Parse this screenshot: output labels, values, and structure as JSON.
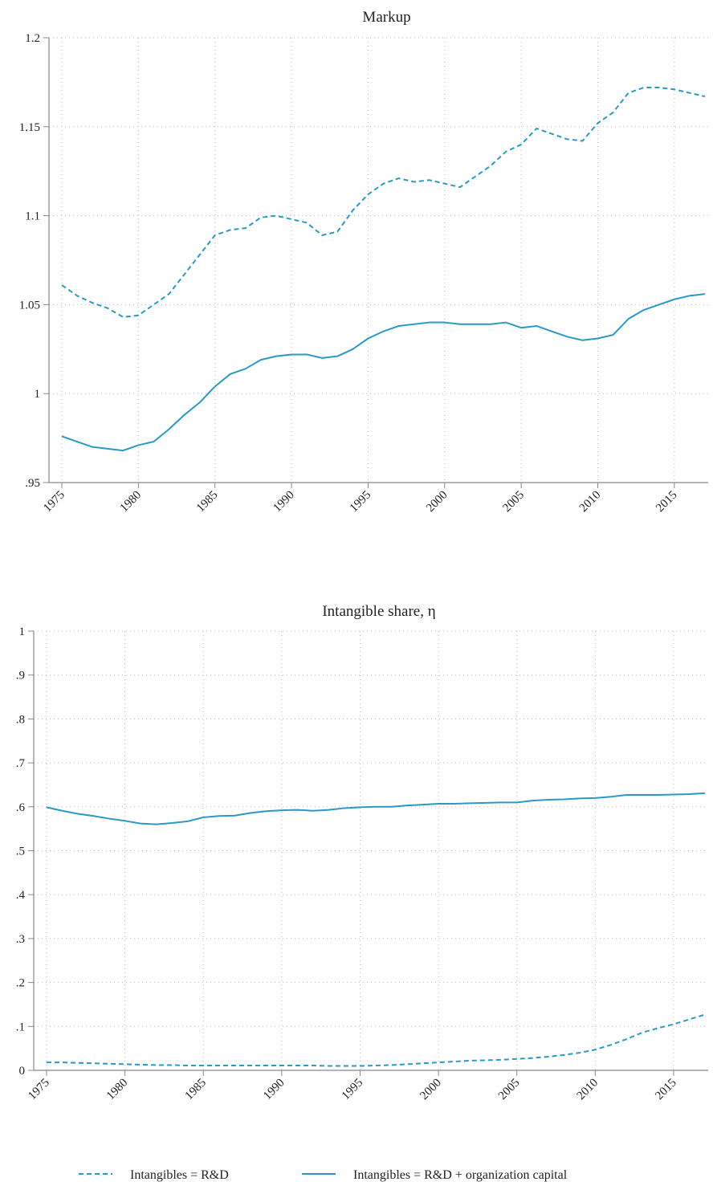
{
  "chart_data": [
    {
      "type": "line",
      "title": "Markup",
      "xlabel": "",
      "ylabel": "",
      "xlim": [
        1975,
        2017
      ],
      "ylim": [
        0.95,
        1.2
      ],
      "x_ticks": [
        "1975",
        "1980",
        "1985",
        "1990",
        "1995",
        "2000",
        "2005",
        "2010",
        "2015"
      ],
      "y_ticks": [
        ".95",
        "1",
        "1.05",
        "1.1",
        "1.15",
        "1.2"
      ],
      "grid": true,
      "x": [
        1975,
        1976,
        1977,
        1978,
        1979,
        1980,
        1981,
        1982,
        1983,
        1984,
        1985,
        1986,
        1987,
        1988,
        1989,
        1990,
        1991,
        1992,
        1993,
        1994,
        1995,
        1996,
        1997,
        1998,
        1999,
        2000,
        2001,
        2002,
        2003,
        2004,
        2005,
        2006,
        2007,
        2008,
        2009,
        2010,
        2011,
        2012,
        2013,
        2014,
        2015,
        2016,
        2017
      ],
      "series": [
        {
          "name": "Intangibles = R&D",
          "style": "dashed",
          "values": [
            1.061,
            1.055,
            1.051,
            1.048,
            1.043,
            1.044,
            1.05,
            1.056,
            1.067,
            1.078,
            1.089,
            1.092,
            1.093,
            1.099,
            1.1,
            1.098,
            1.096,
            1.089,
            1.091,
            1.103,
            1.112,
            1.118,
            1.121,
            1.119,
            1.12,
            1.118,
            1.116,
            1.122,
            1.128,
            1.136,
            1.14,
            1.149,
            1.146,
            1.143,
            1.142,
            1.152,
            1.158,
            1.169,
            1.172,
            1.172,
            1.171,
            1.169,
            1.167
          ]
        },
        {
          "name": "Intangibles = R&D + organization capital",
          "style": "solid",
          "values": [
            0.976,
            0.973,
            0.97,
            0.969,
            0.968,
            0.971,
            0.973,
            0.98,
            0.988,
            0.995,
            1.004,
            1.011,
            1.014,
            1.019,
            1.021,
            1.022,
            1.022,
            1.02,
            1.021,
            1.025,
            1.031,
            1.035,
            1.038,
            1.039,
            1.04,
            1.04,
            1.039,
            1.039,
            1.039,
            1.04,
            1.037,
            1.038,
            1.035,
            1.032,
            1.03,
            1.031,
            1.033,
            1.042,
            1.047,
            1.05,
            1.053,
            1.055,
            1.056
          ]
        }
      ]
    },
    {
      "type": "line",
      "title": "Intangible share, η",
      "xlabel": "",
      "ylabel": "",
      "xlim": [
        1975,
        2017
      ],
      "ylim": [
        0,
        1
      ],
      "x_ticks": [
        "1975",
        "1980",
        "1985",
        "1990",
        "1995",
        "2000",
        "2005",
        "2010",
        "2015"
      ],
      "y_ticks": [
        "0",
        ".1",
        ".2",
        ".3",
        ".4",
        ".5",
        ".6",
        ".7",
        ".8",
        ".9",
        "1"
      ],
      "grid": true,
      "x": [
        1975,
        1976,
        1977,
        1978,
        1979,
        1980,
        1981,
        1982,
        1983,
        1984,
        1985,
        1986,
        1987,
        1988,
        1989,
        1990,
        1991,
        1992,
        1993,
        1994,
        1995,
        1996,
        1997,
        1998,
        1999,
        2000,
        2001,
        2002,
        2003,
        2004,
        2005,
        2006,
        2007,
        2008,
        2009,
        2010,
        2011,
        2012,
        2013,
        2014,
        2015,
        2016,
        2017
      ],
      "series": [
        {
          "name": "Intangibles = R&D",
          "style": "dashed",
          "values": [
            0.018,
            0.018,
            0.017,
            0.016,
            0.015,
            0.014,
            0.013,
            0.012,
            0.012,
            0.011,
            0.011,
            0.011,
            0.011,
            0.011,
            0.011,
            0.011,
            0.011,
            0.011,
            0.01,
            0.01,
            0.01,
            0.011,
            0.012,
            0.014,
            0.016,
            0.018,
            0.02,
            0.022,
            0.023,
            0.024,
            0.026,
            0.028,
            0.031,
            0.035,
            0.04,
            0.047,
            0.058,
            0.071,
            0.086,
            0.096,
            0.105,
            0.116,
            0.127
          ]
        },
        {
          "name": "Intangibles = R&D + organization capital",
          "style": "solid",
          "values": [
            0.599,
            0.591,
            0.584,
            0.579,
            0.573,
            0.568,
            0.562,
            0.56,
            0.563,
            0.567,
            0.576,
            0.579,
            0.58,
            0.586,
            0.59,
            0.592,
            0.593,
            0.591,
            0.593,
            0.597,
            0.599,
            0.6,
            0.6,
            0.603,
            0.605,
            0.607,
            0.607,
            0.608,
            0.609,
            0.61,
            0.61,
            0.614,
            0.616,
            0.617,
            0.619,
            0.62,
            0.623,
            0.627,
            0.627,
            0.627,
            0.628,
            0.629,
            0.631
          ]
        }
      ]
    }
  ],
  "legend": {
    "placement": "bottom",
    "items": [
      {
        "label": "Intangibles = R&D",
        "style": "dashed"
      },
      {
        "label": "Intangibles = R&D + organization capital",
        "style": "solid"
      }
    ]
  },
  "colors": {
    "series": "#2a9ac4",
    "axis": "#888888",
    "grid": "#bbbbbb",
    "text": "#222222"
  }
}
